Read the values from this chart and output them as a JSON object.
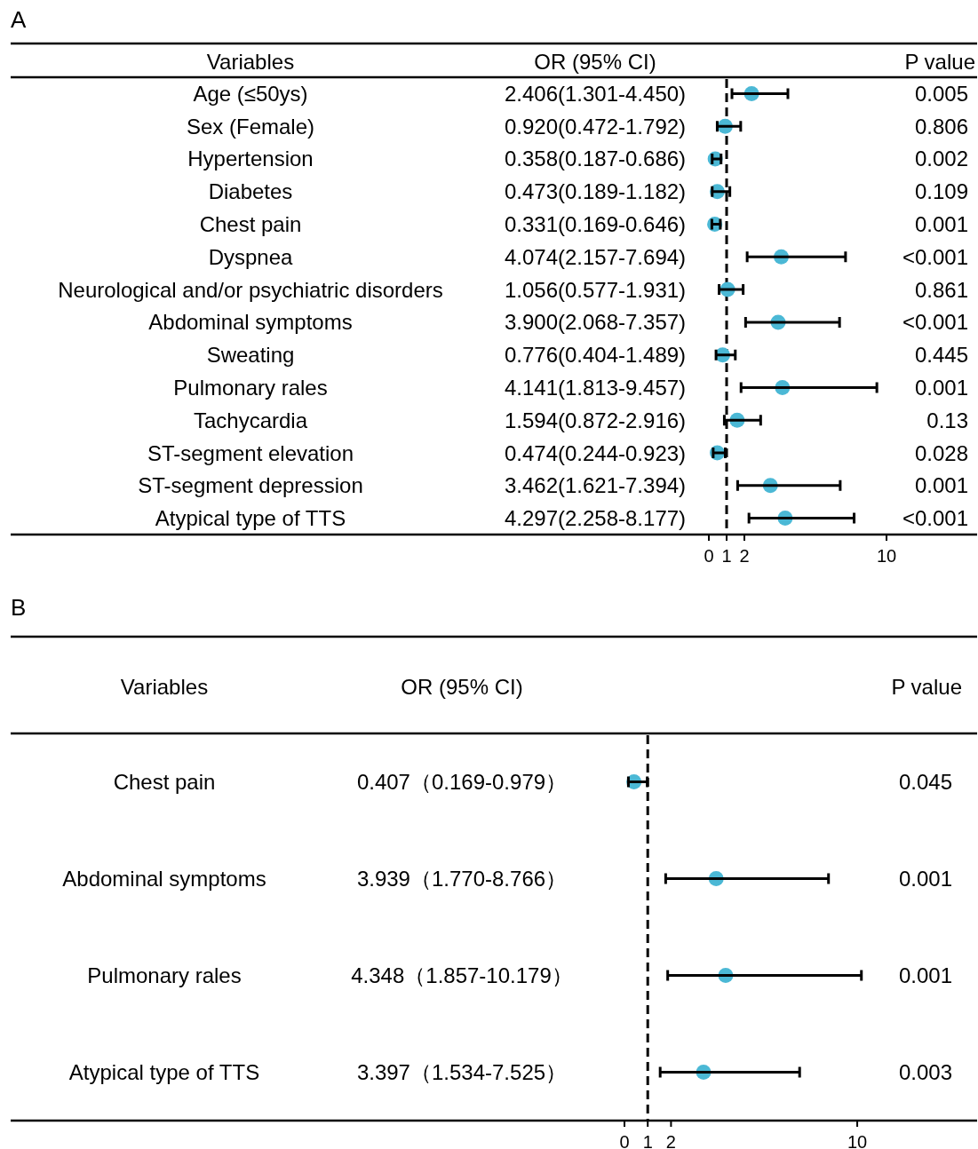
{
  "chart_data": [
    {
      "type": "scatter",
      "title": "A",
      "ylabel": "Variables",
      "orientation": "horizontal",
      "color": "#4bb8d5",
      "categories": [
        "Age (≤50ys)",
        "Sex (Female)",
        "Hypertension",
        "Diabetes",
        "Chest pain",
        "Dyspnea",
        "Neurological and/or psychiatric disorders",
        "Abdominal symptoms",
        "Sweating",
        "Pulmonary rales",
        "Tachycardia",
        "ST-segment elevation",
        "ST-segment depression",
        "Atypical type of TTS"
      ],
      "values": [
        2.406,
        0.92,
        0.358,
        0.473,
        0.331,
        4.074,
        1.056,
        3.9,
        0.776,
        4.141,
        1.594,
        0.474,
        3.462,
        4.297
      ],
      "errors": [
        [
          1.301,
          4.45
        ],
        [
          0.472,
          1.792
        ],
        [
          0.187,
          0.686
        ],
        [
          0.189,
          1.182
        ],
        [
          0.169,
          0.646
        ],
        [
          2.157,
          7.694
        ],
        [
          0.577,
          1.931
        ],
        [
          2.068,
          7.357
        ],
        [
          0.404,
          1.489
        ],
        [
          1.813,
          9.457
        ],
        [
          0.872,
          2.916
        ],
        [
          0.244,
          0.923
        ],
        [
          1.621,
          7.394
        ],
        [
          2.258,
          8.177
        ]
      ],
      "annotations": [
        "OR (95% CI)",
        "P value",
        "2.406(1.301-4.450)",
        "0.920(0.472-1.792)",
        "0.358(0.187-0.686)",
        "0.473(0.189-1.182)",
        "0.331(0.169-0.646)",
        "4.074(2.157-7.694)",
        "1.056(0.577-1.931)",
        "3.900(2.068-7.357)",
        "0.776(0.404-1.489)",
        "4.141(1.813-9.457)",
        "1.594(0.872-2.916)",
        "0.474(0.244-0.923)",
        "3.462(1.621-7.394)",
        "4.297(2.258-8.177)",
        "0.005",
        "0.806",
        "0.002",
        "0.109",
        "0.001",
        "<0.001",
        "0.861",
        "<0.001",
        "0.445",
        "0.001",
        "0.13",
        "0.028",
        "0.001",
        "<0.001"
      ],
      "xlim": [
        -39.3,
        15.1
      ],
      "xticks": [
        0,
        1,
        2,
        10
      ],
      "tick_labels": "x",
      "marker": "circle",
      "grid": false,
      "ref_lines": [
        {
          "axis": "x",
          "value": 1,
          "line_style": "dashed",
          "color": "#000000"
        }
      ]
    },
    {
      "type": "scatter",
      "title": "B",
      "ylabel": "Variables",
      "orientation": "horizontal",
      "color": "#4bb8d5",
      "categories": [
        "Chest pain",
        "Abdominal symptoms",
        "Pulmonary rales",
        "Atypical type of TTS"
      ],
      "values": [
        0.407,
        3.939,
        4.348,
        3.397
      ],
      "errors": [
        [
          0.169,
          0.979
        ],
        [
          1.77,
          8.766
        ],
        [
          1.857,
          10.179
        ],
        [
          1.534,
          7.525
        ]
      ],
      "annotations": [
        "OR (95% CI)",
        "P value",
        "0.407（0.169-0.979）",
        "3.939（1.770-8.766）",
        "4.348（1.857-10.179）",
        "3.397（1.534-7.525）",
        "0.045",
        "0.001",
        "0.001",
        "0.003"
      ],
      "xlim": [
        -26.37,
        15.15
      ],
      "xticks": [
        0,
        1,
        2,
        10
      ],
      "tick_labels": "x",
      "marker": "circle",
      "grid": false,
      "ref_lines": [
        {
          "axis": "x",
          "value": 1,
          "line_style": "dashed",
          "color": "#000000"
        }
      ]
    }
  ]
}
